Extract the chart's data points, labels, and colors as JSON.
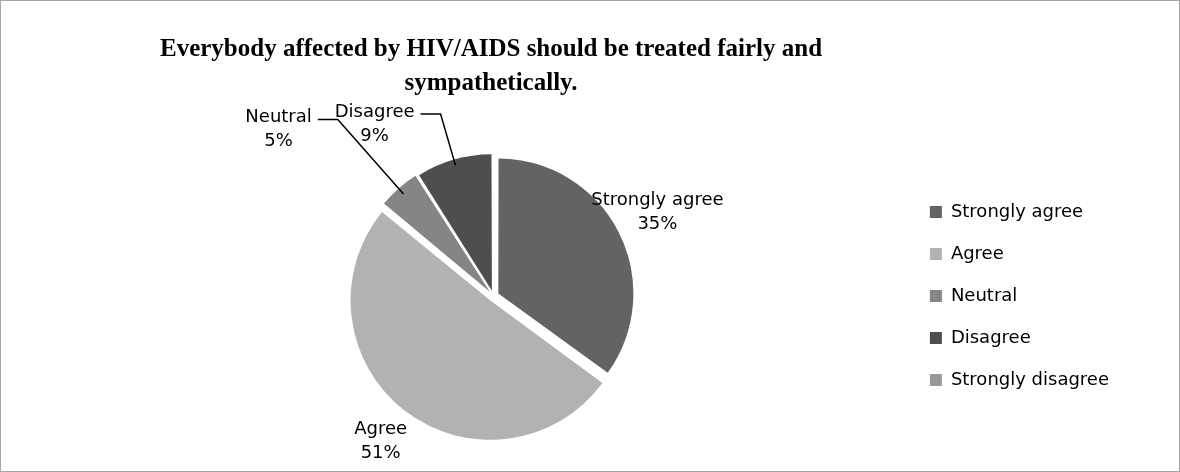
{
  "chart_data": {
    "type": "pie",
    "title": "Everybody affected by HIV/AIDS should be treated fairly and sympathetically.",
    "categories": [
      "Strongly agree",
      "Agree",
      "Neutral",
      "Disagree",
      "Strongly disagree"
    ],
    "values": [
      35,
      51,
      5,
      9,
      0
    ],
    "value_labels": [
      "35%",
      "51%",
      "5%",
      "9%",
      null
    ],
    "colors": [
      "#636363",
      "#b2b2b2",
      "#858585",
      "#4e4e4e",
      "#999999"
    ],
    "legend": "right"
  }
}
